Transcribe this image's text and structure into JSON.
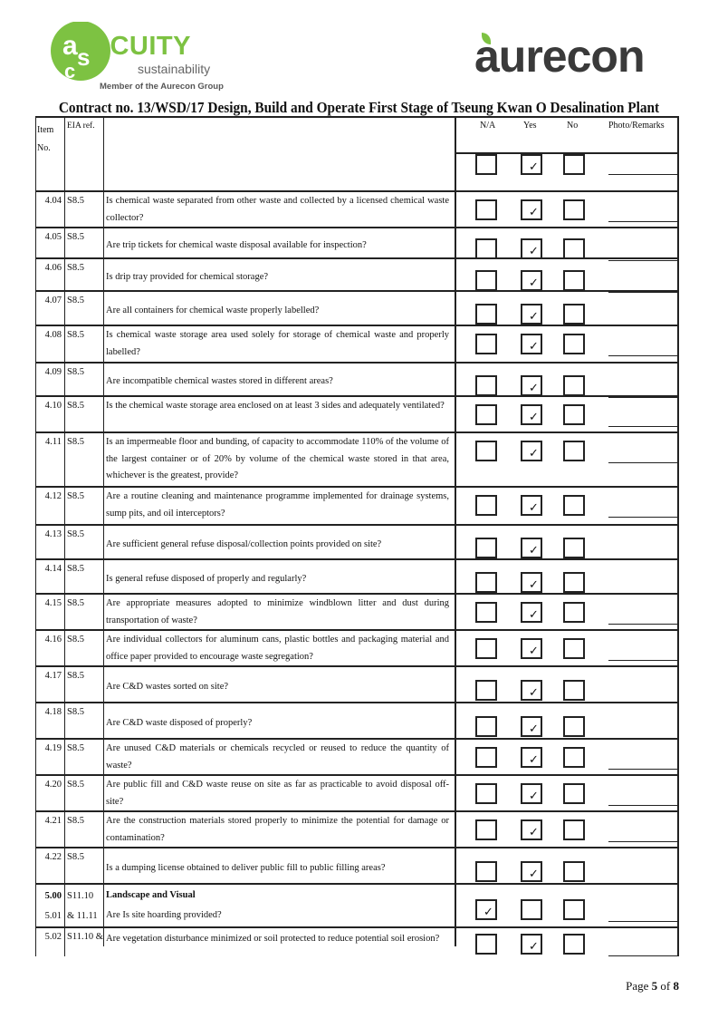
{
  "header": {
    "acuity_logo": {
      "letters": "asc",
      "name": "ACUITY",
      "subtitle": "sustainability",
      "member": "Member of the Aurecon Group"
    },
    "aurecon_logo": "aurecon",
    "brand_green": "#7dc242",
    "title": "Contract no.  13/WSD/17 Design, Build and Operate First Stage of Tseung Kwan O Desalination Plant"
  },
  "table": {
    "columns": {
      "item": "Item No.",
      "eia": "EIA ref.",
      "na": "N/A",
      "yes": "Yes",
      "no": "No",
      "remarks": "Photo/Remarks"
    },
    "header_answer": "yes",
    "rows": [
      {
        "item": "4.04",
        "eia": "S8.5",
        "question": "Is chemical waste separated from other waste and collected by a licensed chemical waste collector?",
        "answer": "yes"
      },
      {
        "item": "4.05",
        "eia": "S8.5",
        "question": "Are trip tickets for chemical waste disposal available for inspection?",
        "answer": "yes"
      },
      {
        "item": "4.06",
        "eia": "S8.5",
        "question": "Is drip tray provided for chemical storage?",
        "answer": "yes"
      },
      {
        "item": "4.07",
        "eia": "S8.5",
        "question": "Are all containers for chemical waste properly labelled?",
        "answer": "yes"
      },
      {
        "item": "4.08",
        "eia": "S8.5",
        "question": "Is chemical waste storage area used solely for storage of chemical waste and properly labelled?",
        "answer": "yes"
      },
      {
        "item": "4.09",
        "eia": "S8.5",
        "question": "Are incompatible chemical wastes stored in different areas?",
        "answer": "yes"
      },
      {
        "item": "4.10",
        "eia": "S8.5",
        "question": "Is the chemical waste storage area enclosed on at least 3 sides and adequately ventilated?",
        "answer": "yes"
      },
      {
        "item": "4.11",
        "eia": "S8.5",
        "question": "Is an impermeable floor and bunding, of capacity to accommodate 110% of the volume of the largest container or of 20% by volume of the chemical waste stored in that area, whichever is the greatest, provide?",
        "answer": "yes"
      },
      {
        "item": "4.12",
        "eia": "S8.5",
        "question": "Are a routine cleaning and maintenance programme implemented for drainage systems, sump pits, and oil interceptors?",
        "answer": "yes"
      },
      {
        "item": "4.13",
        "eia": "S8.5",
        "question": "Are sufficient general refuse disposal/collection points provided on site?",
        "answer": "yes"
      },
      {
        "item": "4.14",
        "eia": "S8.5",
        "question": "Is general refuse disposed of properly and regularly?",
        "answer": "yes"
      },
      {
        "item": "4.15",
        "eia": "S8.5",
        "question": "Are appropriate measures adopted to minimize windblown litter and dust during transportation of waste?",
        "answer": "yes"
      },
      {
        "item": "4.16",
        "eia": "S8.5",
        "question": "Are individual collectors for aluminum cans, plastic bottles and packaging material and office paper provided to encourage waste segregation?",
        "answer": "yes"
      },
      {
        "item": "4.17",
        "eia": "S8.5",
        "question": "Are C&D wastes sorted on site?",
        "answer": "yes"
      },
      {
        "item": "4.18",
        "eia": "S8.5",
        "question": "Are C&D waste disposed of properly?",
        "answer": "yes"
      },
      {
        "item": "4.19",
        "eia": "S8.5",
        "question": "Are unused C&D materials or chemicals recycled or reused to reduce the quantity of waste?",
        "answer": "yes"
      },
      {
        "item": "4.20",
        "eia": "S8.5",
        "question": "Are public fill and C&D waste reuse on site as far as practicable to avoid disposal off-site?",
        "answer": "yes"
      },
      {
        "item": "4.21",
        "eia": "S8.5",
        "question": "Are the construction materials stored properly to minimize the potential for damage or contamination?",
        "answer": "yes"
      },
      {
        "item": "4.22",
        "eia": "S8.5",
        "question": "Is a dumping license obtained to deliver public fill to public filling areas?",
        "answer": "yes"
      }
    ],
    "section": {
      "item": "5.00",
      "sub_item": "5.01",
      "eia": "S11.10",
      "eia2": "& 11.11",
      "heading": "Landscape and Visual",
      "question": "Are Is site hoarding provided?",
      "answer": "na"
    },
    "last_row": {
      "item": "5.02",
      "eia": "S11.10 &",
      "question": "Are vegetation disturbance minimized or soil protected to reduce potential soil erosion?",
      "answer": "yes"
    }
  },
  "footer": {
    "page_prefix": "Page ",
    "page": "5",
    "page_mid": " of ",
    "total": "8"
  }
}
